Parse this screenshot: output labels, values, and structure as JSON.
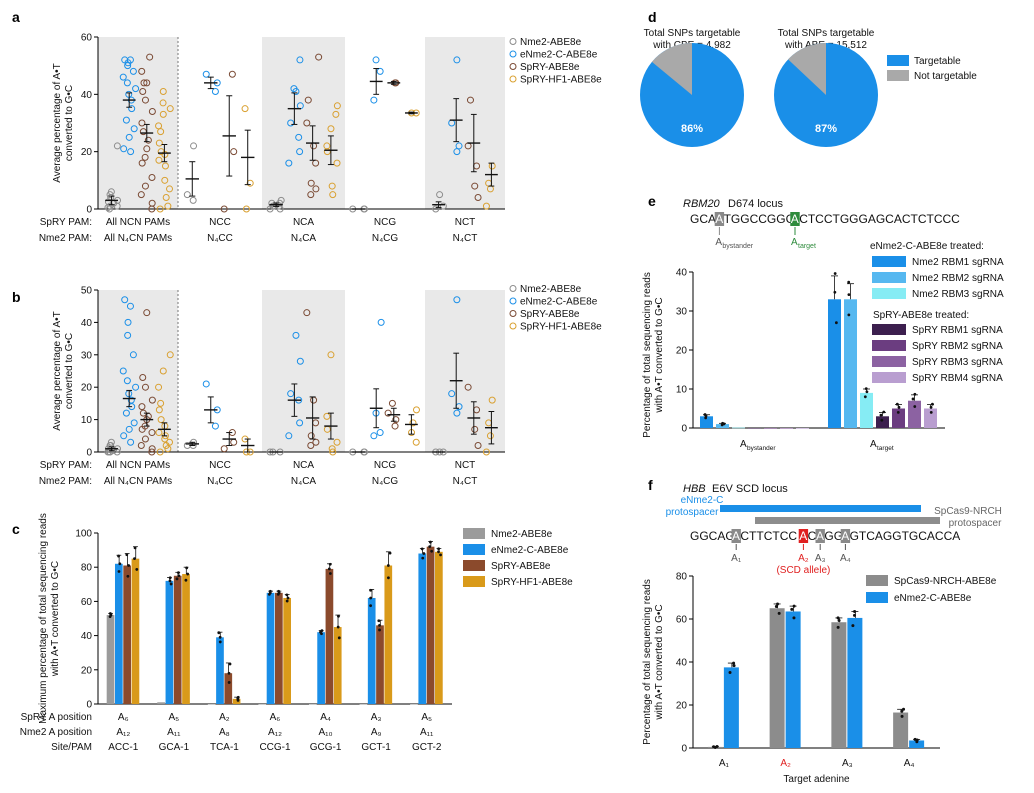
{
  "colors": {
    "nme2": "#8c8c8c",
    "enme2": "#1a8fe8",
    "spry": "#7a4a34",
    "sprh": "#d9a030",
    "shade": "#e9e9e9",
    "pie_target": "#1a8fe8",
    "pie_not": "#a9a9a9",
    "c_nme2": "#9b9b9b",
    "c_enme2": "#1a8fe8",
    "c_spry": "#8b4a2c",
    "c_sprh": "#d99a1a",
    "rbm1": "#1a8fe8",
    "rbm2": "#56b8f0",
    "rbm3": "#86ecf4",
    "spry1": "#3c1f4e",
    "spry2": "#6b3d80",
    "spry3": "#8c62a2",
    "spry4": "#b99ed0",
    "green": "#2e8b3c",
    "red": "#e02020"
  },
  "panels": {
    "a": "a",
    "b": "b",
    "c": "c",
    "d": "d",
    "e": "e",
    "f": "f"
  },
  "row_labels": {
    "spry_pam": "SpRY PAM:",
    "nme2_pam": "Nme2 PAM:",
    "spry_pos": "SpRY A position",
    "nme2_pos": "Nme2 A position",
    "site_pam": "Site/PAM"
  },
  "chart_data": [
    {
      "panel": "a",
      "type": "scatter",
      "ylabel": "Average percentage of A•T converted to G•C",
      "ylim": [
        0,
        60
      ],
      "yticks": [
        0,
        20,
        40,
        60
      ],
      "legend": [
        "Nme2-ABE8e",
        "eNme2-C-ABE8e",
        "SpRY-ABE8e",
        "SpRY-HF1-ABE8e"
      ],
      "spry_pam": [
        "All NCN PAMs",
        "NCC",
        "NCA",
        "NCG",
        "NCT"
      ],
      "nme2_pam": [
        "All N₄CN PAMs",
        "N₄CC",
        "N₄CA",
        "N₄CG",
        "N₄CT"
      ],
      "groups": [
        {
          "series": [
            {
              "mean": 3,
              "err": 1.5,
              "pts": [
                0,
                0.5,
                1,
                1,
                2,
                2.5,
                3,
                4,
                5,
                6,
                22
              ]
            },
            {
              "mean": 38,
              "err": 2.5,
              "pts": [
                20,
                21,
                25,
                28,
                31,
                35,
                38,
                40,
                42,
                44,
                46,
                48,
                50,
                51,
                52,
                52
              ]
            },
            {
              "mean": 26.5,
              "err": 3,
              "pts": [
                0,
                2,
                5,
                8,
                11,
                16,
                18,
                21,
                24,
                27,
                30,
                34,
                38,
                41,
                44,
                44,
                48,
                53
              ]
            },
            {
              "mean": 19.5,
              "err": 3,
              "pts": [
                0,
                1,
                4,
                7,
                10,
                15,
                17,
                19,
                20,
                23,
                27,
                29,
                33,
                35,
                37,
                41
              ]
            }
          ]
        },
        {
          "series": [
            {
              "mean": 10.5,
              "err": 6,
              "pts": [
                3,
                5,
                22
              ]
            },
            {
              "mean": 44,
              "err": 2,
              "pts": [
                41,
                44,
                47
              ]
            },
            {
              "mean": 25.5,
              "err": 14,
              "pts": [
                0,
                20,
                47
              ]
            },
            {
              "mean": 18,
              "err": 9.5,
              "pts": [
                0,
                9,
                35
              ]
            }
          ]
        },
        {
          "series": [
            {
              "mean": 1.5,
              "err": 0.6,
              "pts": [
                0,
                0,
                1,
                1,
                1,
                2,
                2,
                3
              ]
            },
            {
              "mean": 35,
              "err": 5.5,
              "pts": [
                16,
                20,
                25,
                30,
                36,
                41,
                42,
                52
              ]
            },
            {
              "mean": 23,
              "err": 6,
              "pts": [
                5,
                7,
                9,
                16,
                22,
                30,
                38,
                53
              ]
            },
            {
              "mean": 20.5,
              "err": 5,
              "pts": [
                5,
                8,
                16,
                20,
                22,
                28,
                33,
                36
              ]
            }
          ]
        },
        {
          "series": [
            {
              "mean": 0,
              "err": 0,
              "pts": [
                0,
                0,
                0
              ]
            },
            {
              "mean": 44.5,
              "err": 4.5,
              "pts": [
                38,
                48,
                52
              ]
            },
            {
              "mean": 44,
              "err": 0.5,
              "pts": [
                44,
                44
              ]
            },
            {
              "mean": 33.5,
              "err": 0.3,
              "pts": [
                33.5,
                33.5
              ]
            }
          ]
        },
        {
          "series": [
            {
              "mean": 1.5,
              "err": 1,
              "pts": [
                0,
                1,
                5
              ]
            },
            {
              "mean": 31,
              "err": 7.5,
              "pts": [
                20,
                22,
                30,
                52
              ]
            },
            {
              "mean": 23,
              "err": 10,
              "pts": [
                4,
                8,
                15,
                22,
                38
              ]
            },
            {
              "mean": 12,
              "err": 4,
              "pts": [
                1,
                7,
                9,
                15
              ]
            }
          ]
        }
      ]
    },
    {
      "panel": "b",
      "type": "scatter",
      "ylabel": "Average percentage of A•T converted to G•C",
      "ylim": [
        0,
        50
      ],
      "yticks": [
        0,
        10,
        20,
        30,
        40,
        50
      ],
      "legend": [
        "Nme2-ABE8e",
        "eNme2-C-ABE8e",
        "SpRY-ABE8e",
        "SpRY-HF1-ABE8e"
      ],
      "spry_pam": [
        "All NCN PAMs",
        "NCC",
        "NCA",
        "NCG",
        "NCT"
      ],
      "nme2_pam": [
        "All N₄CN PAMs",
        "N₄CC",
        "N₄CA",
        "N₄CG",
        "N₄CT"
      ],
      "groups": [
        {
          "series": [
            {
              "mean": 1,
              "err": 0.6,
              "pts": [
                0,
                0,
                0,
                0,
                0.5,
                1,
                1,
                2,
                2,
                3
              ]
            },
            {
              "mean": 16.5,
              "err": 2.5,
              "pts": [
                3,
                5,
                7,
                9,
                12,
                14,
                16,
                18,
                20,
                22,
                25,
                30,
                36,
                40,
                45,
                47
              ]
            },
            {
              "mean": 10,
              "err": 2,
              "pts": [
                0,
                1,
                2,
                4,
                6,
                7,
                8,
                10,
                11,
                12,
                14,
                16,
                20,
                23,
                43
              ]
            },
            {
              "mean": 7,
              "err": 2,
              "pts": [
                0,
                1,
                2,
                3,
                4,
                5,
                6,
                8,
                10,
                13,
                15,
                20,
                25,
                30
              ]
            }
          ]
        },
        {
          "series": [
            {
              "mean": 2.5,
              "err": 0.5,
              "pts": [
                2,
                2,
                3
              ]
            },
            {
              "mean": 13,
              "err": 4,
              "pts": [
                8,
                13,
                21
              ]
            },
            {
              "mean": 4,
              "err": 2,
              "pts": [
                1,
                3,
                6
              ]
            },
            {
              "mean": 2,
              "err": 2,
              "pts": [
                0,
                0,
                4
              ]
            }
          ]
        },
        {
          "series": [
            {
              "mean": 0,
              "err": 0,
              "pts": [
                0,
                0,
                0
              ]
            },
            {
              "mean": 16,
              "err": 5,
              "pts": [
                5,
                9,
                16,
                18,
                28,
                36
              ]
            },
            {
              "mean": 10.5,
              "err": 6.5,
              "pts": [
                2,
                3,
                5,
                9,
                16,
                43
              ]
            },
            {
              "mean": 8,
              "err": 4,
              "pts": [
                0,
                1,
                3,
                7,
                11,
                30
              ]
            }
          ]
        },
        {
          "series": [
            {
              "mean": 0,
              "err": 0,
              "pts": [
                0,
                0,
                0
              ]
            },
            {
              "mean": 13.5,
              "err": 6,
              "pts": [
                5,
                6,
                12,
                40
              ]
            },
            {
              "mean": 11.5,
              "err": 2,
              "pts": [
                8,
                10,
                12,
                15
              ]
            },
            {
              "mean": 8.5,
              "err": 3,
              "pts": [
                3,
                6,
                9,
                13
              ]
            }
          ]
        },
        {
          "series": [
            {
              "mean": 0,
              "err": 0,
              "pts": [
                0,
                0,
                0
              ]
            },
            {
              "mean": 22,
              "err": 8.5,
              "pts": [
                12,
                14,
                18,
                47
              ]
            },
            {
              "mean": 10.5,
              "err": 5,
              "pts": [
                2,
                7,
                13,
                20
              ]
            },
            {
              "mean": 7.5,
              "err": 5,
              "pts": [
                0,
                5,
                9,
                16
              ]
            }
          ]
        }
      ]
    },
    {
      "panel": "c",
      "type": "bar",
      "ylabel": "Maximum percentage of total sequencing reads with A•T converted to G•C",
      "ylim": [
        0,
        100
      ],
      "yticks": [
        0,
        20,
        40,
        60,
        80,
        100
      ],
      "legend": [
        "Nme2-ABE8e",
        "eNme2-C-ABE8e",
        "SpRY-ABE8e",
        "SpRY-HF1-ABE8e"
      ],
      "categories": [
        "ACC-1",
        "GCA-1",
        "TCA-1",
        "CCG-1",
        "GCG-1",
        "GCT-1",
        "GCT-2"
      ],
      "spry_pos": [
        "A₆",
        "A₅",
        "A₂",
        "A₆",
        "A₄",
        "A₃",
        "A₅"
      ],
      "nme2_pos": [
        "A₁₂",
        "A₁₁",
        "A₈",
        "A₁₂",
        "A₁₀",
        "A₉",
        "A₁₁"
      ],
      "series": [
        {
          "name": "Nme2-ABE8e",
          "values": [
            52,
            1,
            0,
            0,
            0,
            0,
            0
          ],
          "err": [
            1,
            0,
            0,
            0,
            0,
            0,
            0
          ]
        },
        {
          "name": "eNme2-C-ABE8e",
          "values": [
            82,
            72,
            39,
            65,
            42,
            62,
            88
          ],
          "err": [
            5,
            2,
            3,
            1,
            1,
            5,
            3
          ]
        },
        {
          "name": "SpRY-ABE8e",
          "values": [
            81,
            75,
            18,
            65,
            79,
            46,
            92
          ],
          "err": [
            7,
            2,
            6,
            1,
            3,
            3,
            3
          ]
        },
        {
          "name": "SpRY-HF1-ABE8e",
          "values": [
            85,
            76,
            3,
            62,
            45,
            81,
            89
          ],
          "err": [
            7,
            4,
            1,
            2,
            7,
            8,
            2
          ]
        }
      ]
    },
    {
      "panel": "d",
      "type": "pie",
      "pies": [
        {
          "title": "Total SNPs targetable with CBE = 4,982",
          "targetable": 86,
          "label": "86%"
        },
        {
          "title": "Total SNPs targetable with ABE = 15,512",
          "targetable": 87,
          "label": "87%"
        }
      ],
      "legend": [
        "Targetable",
        "Not targetable"
      ]
    },
    {
      "panel": "e",
      "type": "bar",
      "locus_gene": "RBM20",
      "locus_rest": "D674 locus",
      "sequence": "GCATGGCCGGGACTCCTGGGAGCACTCTCCC",
      "seq_pre": "GCA",
      "seq_hl1": "A",
      "seq_mid": "TGGCCGGG",
      "seq_hl2": "A",
      "seq_post": "CTCCTGGGAGCACTCTCCC",
      "ann_bystander_main": "A",
      "ann_bystander_sub": "bystander",
      "ann_target_main": "A",
      "ann_target_sub": "target",
      "ylabel": "Percentage of total sequencing reads with A•T converted to G•C",
      "ylim": [
        0,
        40
      ],
      "yticks": [
        0,
        10,
        20,
        30,
        40
      ],
      "legend_title_1": "eNme2-C-ABE8e treated:",
      "legend_title_2": "SpRY-ABE8e treated:",
      "categories": [
        "A bystander",
        "A target"
      ],
      "series": [
        {
          "name": "Nme2 RBM1 sgRNA",
          "values": [
            3,
            33
          ],
          "err": [
            0.4,
            6
          ]
        },
        {
          "name": "Nme2 RBM2 sgRNA",
          "values": [
            1,
            33
          ],
          "err": [
            0.2,
            4
          ]
        },
        {
          "name": "Nme2 RBM3 sgRNA",
          "values": [
            0.1,
            9
          ],
          "err": [
            0,
            1
          ]
        },
        {
          "name": "SpRY RBM1 sgRNA",
          "values": [
            0,
            3
          ],
          "err": [
            0,
            1
          ]
        },
        {
          "name": "SpRY RBM2 sgRNA",
          "values": [
            0,
            5
          ],
          "err": [
            0,
            1
          ]
        },
        {
          "name": "SpRY RBM3 sgRNA",
          "values": [
            0,
            7
          ],
          "err": [
            0,
            1.5
          ]
        },
        {
          "name": "SpRY RBM4 sgRNA",
          "values": [
            0,
            5
          ],
          "err": [
            0,
            1
          ]
        }
      ]
    },
    {
      "panel": "f",
      "type": "bar",
      "locus_gene": "HBB",
      "locus_rest": "E6V SCD locus",
      "protospacer_enme2": "eNme2-C protospacer",
      "protospacer_spcas9": "SpCas9-NRCH protospacer",
      "seq_parts": [
        "GGCAG",
        "A",
        "CTTCTCC",
        "A",
        "C",
        "A",
        "GG",
        "A",
        "GTCAGGTGCACCA"
      ],
      "adenine_labels": [
        "A₁",
        "A₂",
        "A₃",
        "A₄"
      ],
      "scd_label": "(SCD allele)",
      "ylabel": "Percentage of total sequencing reads with A•T converted to G•C",
      "xlabel": "Target adenine",
      "ylim": [
        0,
        80
      ],
      "yticks": [
        0,
        20,
        40,
        60,
        80
      ],
      "categories": [
        "A₁",
        "A₂",
        "A₃",
        "A₄"
      ],
      "series": [
        {
          "name": "SpCas9-NRCH-ABE8e",
          "values": [
            0.5,
            65,
            58.5,
            16.5
          ],
          "err": [
            0.2,
            2,
            2,
            1.5
          ]
        },
        {
          "name": "eNme2-C-ABE8e",
          "values": [
            37.5,
            63.5,
            60.5,
            3.5
          ],
          "err": [
            2,
            2.5,
            3,
            0.5
          ]
        }
      ]
    }
  ]
}
